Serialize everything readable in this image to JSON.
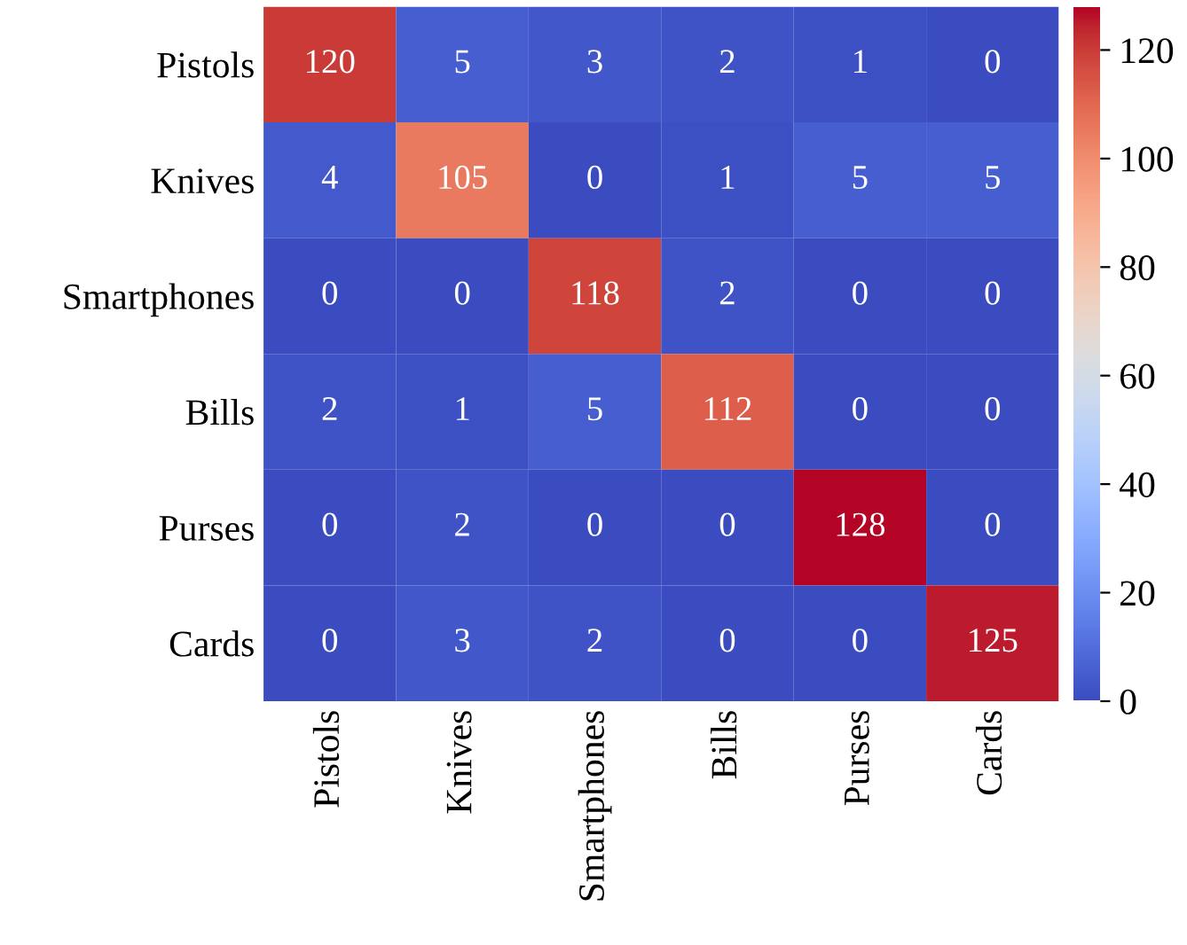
{
  "chart_data": {
    "type": "heatmap",
    "categories": [
      "Pistols",
      "Knives",
      "Smartphones",
      "Bills",
      "Purses",
      "Cards"
    ],
    "y_categories": [
      "Pistols",
      "Knives",
      "Smartphones",
      "Bills",
      "Purses",
      "Cards"
    ],
    "cells": [
      [
        120,
        5,
        3,
        2,
        1,
        0
      ],
      [
        4,
        105,
        0,
        1,
        5,
        5
      ],
      [
        0,
        0,
        118,
        2,
        0,
        0
      ],
      [
        2,
        1,
        5,
        112,
        0,
        0
      ],
      [
        0,
        2,
        0,
        0,
        128,
        0
      ],
      [
        0,
        3,
        2,
        0,
        0,
        125
      ]
    ],
    "data_labels": true,
    "clim": [
      0,
      128
    ],
    "cticks": [
      0,
      20,
      40,
      60,
      80,
      100,
      120
    ]
  }
}
